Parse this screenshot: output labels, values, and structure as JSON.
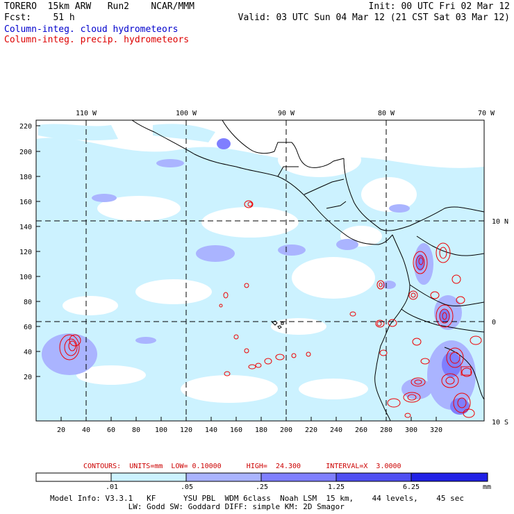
{
  "header": {
    "model": "TORERO  15km ARW   Run2    NCAR/MMM",
    "fcst": "Fcst:    51 h",
    "init": "Init: 00 UTC Fri 02 Mar 12",
    "valid": "Valid: 03 UTC Sun 04 Mar 12 (21 CST Sat 03 Mar 12)",
    "field1": "Column-integ. cloud hydrometeors",
    "field2": "Column-integ. precip. hydrometeors"
  },
  "map": {
    "lon_labels": [
      "110 W",
      "100 W",
      "90 W",
      "80 W",
      "70 W"
    ],
    "lat_labels": [
      "10 N",
      "0",
      "10 S"
    ],
    "y_ticks": [
      "220",
      "200",
      "180",
      "160",
      "140",
      "120",
      "100",
      "80",
      "60",
      "40",
      "20"
    ],
    "x_ticks": [
      "20",
      "40",
      "60",
      "80",
      "100",
      "120",
      "140",
      "160",
      "180",
      "200",
      "220",
      "240",
      "260",
      "280",
      "300",
      "320"
    ]
  },
  "contours": "CONTOURS:  UNITS=mm  LOW= 0.10000      HIGH=  24.300      INTERVAL=X  3.0000",
  "colorbar": {
    "labels": [
      ".01",
      ".05",
      ".25",
      "1.25",
      "6.25"
    ],
    "units": "mm",
    "colors": [
      "#ffffff",
      "#ccf2ff",
      "#aab4ff",
      "#7f7fff",
      "#4f4ff2",
      "#2020e6"
    ]
  },
  "info": {
    "line1": "Model Info: V3.3.1   KF      YSU PBL  WDM 6class  Noah LSM  15 km,    44 levels,    45 sec",
    "line2": "                 LW: Godd SW: Goddard DIFF: simple KM: 2D Smagor"
  },
  "colors": {
    "cloud_light": "#ccf2ff",
    "cloud_mid": "#aab4ff",
    "cloud_dark": "#7f7fff",
    "precip_contour": "#ee0000"
  }
}
